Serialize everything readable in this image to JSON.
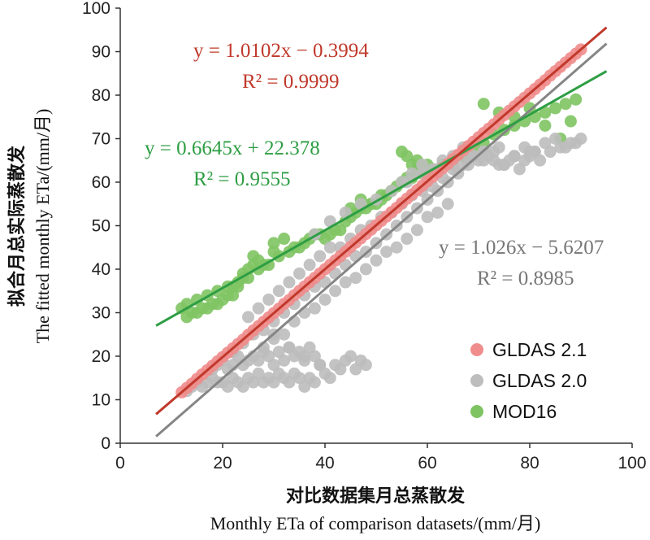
{
  "chart_data": {
    "type": "scatter",
    "xlim": [
      0,
      100
    ],
    "ylim": [
      0,
      100
    ],
    "xticks": [
      "0",
      "20",
      "40",
      "60",
      "80",
      "100"
    ],
    "yticks": [
      "0",
      "10",
      "20",
      "30",
      "40",
      "50",
      "60",
      "70",
      "80",
      "90",
      "100"
    ],
    "xlabel_cn": "对比数据集月总蒸散发",
    "xlabel_en": "Monthly ETa of comparison datasets/(mm/月)",
    "ylabel_cn": "拟合月总实际蒸散发",
    "ylabel_en": "The fitted monthly ETa/(mm/月)",
    "grid": false,
    "legend_position": "bottom-right",
    "series": [
      {
        "name": "GLDAS 2.1",
        "color": "#f08c8c",
        "line_color": "#c0392b",
        "fit": {
          "slope": 1.0102,
          "intercept": -0.3994,
          "x_range": [
            7,
            95
          ]
        },
        "equation": "y = 1.0102x − 0.3994",
        "r2": "R² = 0.9999",
        "x": [
          12,
          13,
          14,
          15,
          16,
          17,
          18,
          19,
          20,
          21,
          22,
          23,
          24,
          25,
          26,
          27,
          28,
          29,
          30,
          31,
          32,
          33,
          34,
          35,
          36,
          37,
          38,
          39,
          40,
          41,
          42,
          43,
          44,
          45,
          46,
          47,
          48,
          49,
          50,
          51,
          52,
          53,
          54,
          55,
          56,
          57,
          58,
          59,
          60,
          61,
          62,
          63,
          64,
          65,
          66,
          67,
          68,
          69,
          70,
          71,
          72,
          73,
          74,
          75,
          76,
          77,
          78,
          79,
          80,
          81,
          82,
          83,
          84,
          85,
          86,
          87,
          88,
          89,
          90
        ],
        "y": [
          11.7,
          12.7,
          13.7,
          14.8,
          15.8,
          16.8,
          17.8,
          18.8,
          19.8,
          20.8,
          21.8,
          22.8,
          23.8,
          24.9,
          25.9,
          26.9,
          27.9,
          28.9,
          29.9,
          30.9,
          32.0,
          32.9,
          34.0,
          35.0,
          36.0,
          37.0,
          38.0,
          39.0,
          40.0,
          41.0,
          42.0,
          43.0,
          44.0,
          45.1,
          46.1,
          47.1,
          48.1,
          49.1,
          50.1,
          51.1,
          52.1,
          53.1,
          54.1,
          55.2,
          56.2,
          57.2,
          58.2,
          59.2,
          60.2,
          61.2,
          62.2,
          63.2,
          64.2,
          65.3,
          66.3,
          67.3,
          68.3,
          69.3,
          70.3,
          71.3,
          72.3,
          73.3,
          74.4,
          75.4,
          76.4,
          77.4,
          78.4,
          79.4,
          80.4,
          81.4,
          82.4,
          83.4,
          84.5,
          85.5,
          86.5,
          87.5,
          88.5,
          89.5,
          90.5
        ]
      },
      {
        "name": "GLDAS 2.0",
        "color": "#bdbdbd",
        "line_color": "#858585",
        "fit": {
          "slope": 1.026,
          "intercept": -5.6207,
          "x_range": [
            7,
            95
          ]
        },
        "equation": "y = 1.026x − 5.6207",
        "r2": "R² = 0.8985",
        "x": [
          13,
          14,
          15,
          16,
          17,
          18,
          19,
          20,
          21,
          22,
          23,
          24,
          25,
          26,
          27,
          28,
          29,
          30,
          31,
          32,
          33,
          34,
          35,
          36,
          37,
          38,
          18,
          19,
          20,
          21,
          22,
          23,
          24,
          25,
          26,
          27,
          28,
          29,
          30,
          31,
          32,
          33,
          34,
          35,
          36,
          37,
          38,
          39,
          40,
          41,
          42,
          43,
          44,
          45,
          46,
          47,
          48,
          28,
          30,
          32,
          34,
          36,
          38,
          40,
          42,
          44,
          46,
          48,
          50,
          52,
          54,
          56,
          58,
          60,
          62,
          64,
          22,
          24,
          26,
          28,
          30,
          32,
          34,
          36,
          38,
          40,
          42,
          44,
          46,
          48,
          50,
          52,
          54,
          56,
          58,
          60,
          62,
          64,
          66,
          68,
          70,
          72,
          74,
          76,
          78,
          80,
          82,
          84,
          86,
          88,
          90,
          55,
          57,
          59,
          61,
          63,
          65,
          67,
          69,
          71,
          73,
          75,
          77,
          79,
          81,
          83,
          85,
          87,
          89,
          30,
          33,
          36,
          39,
          25,
          27,
          29,
          31,
          33,
          35,
          37,
          39,
          41,
          43,
          45,
          47,
          49,
          51,
          53,
          55,
          57,
          59,
          61,
          63,
          65,
          67,
          69,
          71,
          73,
          75,
          77,
          79,
          81,
          38,
          41,
          44,
          47,
          50,
          53,
          56,
          59,
          62,
          65,
          68,
          71,
          74,
          77,
          80
        ],
        "y": [
          12,
          13,
          14,
          13,
          14,
          15,
          14,
          14,
          13,
          15,
          14,
          13,
          15,
          14,
          16,
          14,
          15,
          14,
          16,
          15,
          14,
          16,
          15,
          13,
          15,
          14,
          17,
          18,
          19,
          17,
          18,
          20,
          18,
          19,
          20,
          19,
          21,
          20,
          18,
          21,
          19,
          22,
          20,
          21,
          19,
          22,
          20,
          18,
          16,
          15,
          18,
          17,
          19,
          20,
          17,
          19,
          18,
          22,
          24,
          25,
          28,
          30,
          31,
          33,
          35,
          37,
          38,
          40,
          42,
          44,
          45,
          47,
          49,
          52,
          53,
          55,
          21,
          23,
          25,
          26,
          28,
          30,
          32,
          34,
          36,
          37,
          39,
          41,
          43,
          44,
          46,
          48,
          50,
          52,
          54,
          56,
          58,
          60,
          62,
          64,
          65,
          66,
          64,
          65,
          63,
          66,
          65,
          67,
          68,
          69,
          70,
          60,
          62,
          64,
          63,
          65,
          66,
          68,
          66,
          65,
          67,
          64,
          66,
          68,
          67,
          69,
          70,
          68,
          69,
          25,
          22,
          20,
          18,
          29,
          31,
          33,
          35,
          37,
          39,
          41,
          43,
          45,
          45,
          47,
          49,
          50,
          52,
          53,
          55,
          57,
          58,
          59,
          61,
          63,
          64,
          66,
          67,
          65,
          64,
          66,
          65,
          67,
          48,
          51,
          53,
          55,
          56,
          58,
          60,
          62,
          63,
          64,
          66,
          67,
          68,
          66,
          67
        ]
      },
      {
        "name": "MOD16",
        "color": "#7fc463",
        "line_color": "#2e9e44",
        "fit": {
          "slope": 0.6645,
          "intercept": 22.378,
          "x_range": [
            7,
            95
          ]
        },
        "equation": "y = 0.6645x + 22.378",
        "r2": "R² = 0.9555",
        "x": [
          12,
          13,
          14,
          15,
          16,
          17,
          18,
          19,
          20,
          21,
          22,
          23,
          24,
          25,
          26,
          27,
          13,
          15,
          17,
          19,
          21,
          23,
          25,
          27,
          29,
          31,
          33,
          35,
          37,
          39,
          41,
          43,
          45,
          47,
          49,
          51,
          53,
          55,
          57,
          59,
          61,
          63,
          65,
          67,
          69,
          71,
          73,
          75,
          77,
          79,
          81,
          83,
          85,
          87,
          89,
          30,
          32,
          34,
          36,
          38,
          40,
          42,
          44,
          46,
          48,
          50,
          52,
          54,
          56,
          58,
          60,
          55,
          56,
          57,
          58,
          59,
          60,
          22,
          24,
          26,
          28,
          30,
          45,
          47,
          49,
          51,
          53,
          71,
          74,
          77,
          80,
          83,
          86,
          88
        ],
        "y": [
          31,
          32,
          30,
          33,
          31,
          34,
          32,
          35,
          33,
          36,
          34,
          37,
          38,
          40,
          41,
          42,
          29,
          30,
          31,
          32,
          34,
          36,
          38,
          40,
          41,
          43,
          44,
          45,
          47,
          48,
          48,
          49,
          52,
          54,
          55,
          56,
          58,
          60,
          61,
          62,
          63,
          64,
          65,
          66,
          68,
          69,
          71,
          72,
          73,
          74,
          75,
          76,
          77,
          78,
          79,
          46,
          47,
          45,
          46,
          48,
          47,
          49,
          51,
          53,
          54,
          55,
          57,
          59,
          61,
          63,
          62,
          67,
          66,
          64,
          65,
          63,
          64,
          36,
          39,
          43,
          41,
          44,
          54,
          56,
          55,
          57,
          58,
          78,
          76,
          75,
          77,
          73,
          70,
          74
        ]
      }
    ]
  }
}
